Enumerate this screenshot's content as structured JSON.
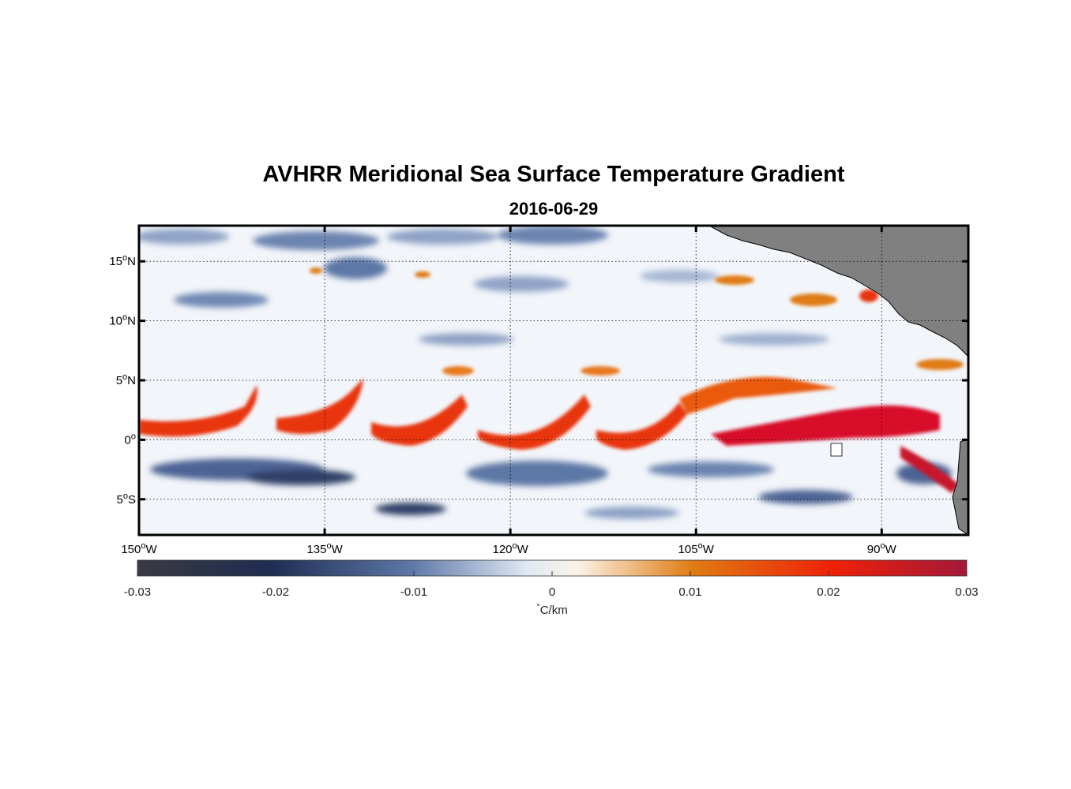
{
  "title": "AVHRR Meridional Sea Surface Temperature Gradient",
  "subtitle": "2016-06-29",
  "map": {
    "lon_range": [
      -150,
      -83
    ],
    "lat_range": [
      -8,
      18
    ],
    "lat_ticks": [
      {
        "value": 15,
        "num": "15",
        "deg": "o",
        "hemi": "N"
      },
      {
        "value": 10,
        "num": "10",
        "deg": "o",
        "hemi": "N"
      },
      {
        "value": 5,
        "num": "5",
        "deg": "o",
        "hemi": "N"
      },
      {
        "value": 0,
        "num": "0",
        "deg": "o",
        "hemi": ""
      },
      {
        "value": -5,
        "num": "5",
        "deg": "o",
        "hemi": "S"
      }
    ],
    "lon_ticks": [
      {
        "value": -150,
        "num": "150",
        "deg": "o",
        "hemi": "W"
      },
      {
        "value": -135,
        "num": "135",
        "deg": "o",
        "hemi": "W"
      },
      {
        "value": -120,
        "num": "120",
        "deg": "o",
        "hemi": "W"
      },
      {
        "value": -105,
        "num": "105",
        "deg": "o",
        "hemi": "W"
      },
      {
        "value": -90,
        "num": "90",
        "deg": "o",
        "hemi": "W"
      }
    ],
    "land_color": "#808080",
    "frame_color": "#000000"
  },
  "colorbar": {
    "min": -0.03,
    "max": 0.03,
    "tick_labels": [
      "-0.03",
      "-0.02",
      "-0.01",
      "0",
      "0.01",
      "0.02",
      "0.03"
    ],
    "tick_values": [
      -0.03,
      -0.02,
      -0.01,
      0,
      0.01,
      0.02,
      0.03
    ],
    "units_deg": "°",
    "units": "C/km",
    "colors": [
      "#3a3a40",
      "#1e2d52",
      "#5d77a6",
      "#dfe9f4",
      "#fbf3e7",
      "#e07b12",
      "#ee2008",
      "#a3183a"
    ]
  }
}
